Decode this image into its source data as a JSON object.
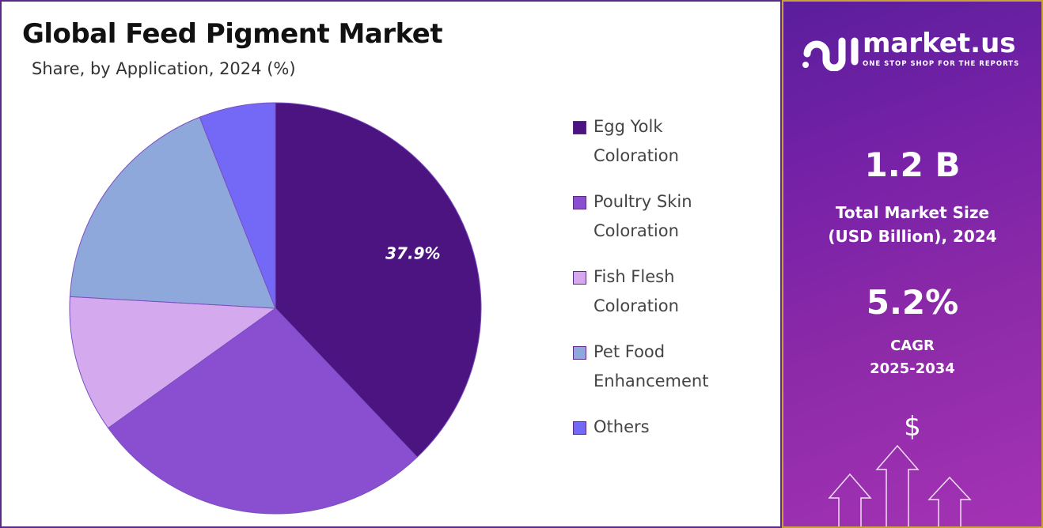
{
  "chart_data": {
    "type": "pie",
    "title": "Global Feed Pigment Market",
    "subtitle": "Share, by Application, 2024 (%)",
    "legend_position": "right",
    "categories": [
      "Egg Yolk Coloration",
      "Poultry Skin Coloration",
      "Fish Flesh Coloration",
      "Pet Food Enhancement",
      "Others"
    ],
    "legend_lines": [
      [
        "Egg Yolk",
        "Coloration"
      ],
      [
        "Poultry Skin",
        "Coloration"
      ],
      [
        "Fish Flesh",
        "Coloration"
      ],
      [
        "Pet Food",
        "Enhancement"
      ],
      [
        "Others"
      ]
    ],
    "values": [
      37.9,
      27.2,
      10.8,
      18.1,
      6.0
    ],
    "colors": [
      "#4b1480",
      "#8a4fd0",
      "#d4a9ee",
      "#8fa8dc",
      "#7468f6"
    ],
    "data_labels": [
      "37.9%",
      "",
      "",
      "",
      ""
    ]
  },
  "panel": {
    "brand": "market.us",
    "tagline": "ONE STOP SHOP FOR THE REPORTS",
    "market_size": "1.2 B",
    "market_size_label_1": "Total Market Size",
    "market_size_label_2": "(USD Billion), 2024",
    "cagr": "5.2%",
    "cagr_label_1": "CAGR",
    "cagr_label_2": "2025-2034",
    "currency_symbol": "$"
  }
}
